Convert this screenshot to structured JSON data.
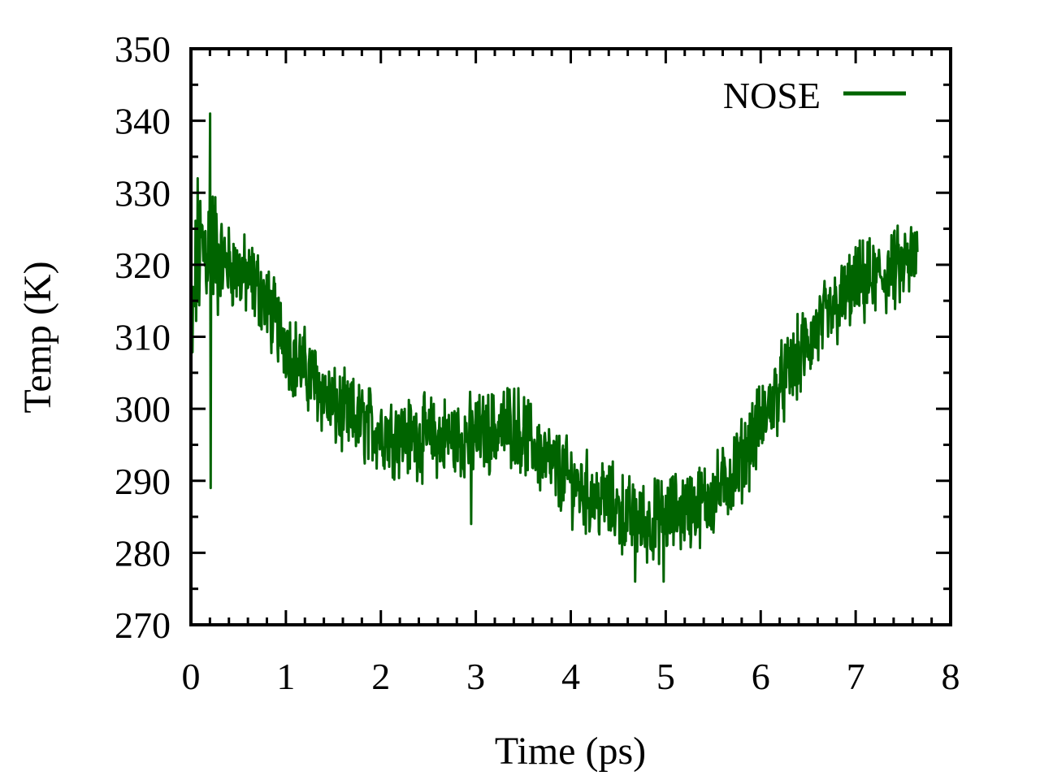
{
  "chart_data": {
    "type": "line",
    "xlabel": "Time (ps)",
    "ylabel": "Temp (K)",
    "xlim": [
      0,
      8
    ],
    "ylim": [
      270,
      350
    ],
    "xticks": [
      "0",
      "1",
      "2",
      "3",
      "4",
      "5",
      "6",
      "7",
      "8"
    ],
    "yticks": [
      "270",
      "280",
      "290",
      "300",
      "310",
      "320",
      "330",
      "340",
      "350"
    ],
    "minor_ticks": true,
    "grid": false,
    "legend_position": "top-right",
    "series": [
      {
        "name": "NOSE",
        "color": "#006400",
        "x_range": [
          0,
          7.65
        ],
        "noise_amplitude_K": 4.5,
        "trend_x": [
          0.0,
          0.05,
          0.1,
          0.2,
          0.3,
          0.5,
          0.7,
          0.9,
          1.1,
          1.3,
          1.5,
          1.8,
          2.0,
          2.3,
          2.6,
          2.9,
          3.2,
          3.4,
          3.6,
          3.8,
          4.0,
          4.2,
          4.4,
          4.6,
          4.8,
          5.0,
          5.2,
          5.4,
          5.6,
          5.8,
          6.0,
          6.2,
          6.4,
          6.6,
          6.8,
          7.0,
          7.2,
          7.4,
          7.65
        ],
        "trend_y": [
          306,
          318,
          322,
          323,
          321,
          319,
          317,
          312,
          307,
          304,
          300,
          298,
          297,
          296,
          296,
          296,
          297,
          298,
          295,
          292,
          290,
          288,
          287,
          285,
          284,
          285,
          286,
          287,
          289,
          293,
          298,
          303,
          307,
          311,
          314,
          317,
          318,
          319,
          321
        ],
        "spikes": [
          {
            "x": 0.2,
            "y": 341
          },
          {
            "x": 0.21,
            "y": 289
          },
          {
            "x": 0.07,
            "y": 332
          },
          {
            "x": 4.68,
            "y": 276
          },
          {
            "x": 4.98,
            "y": 276
          },
          {
            "x": 2.95,
            "y": 284
          }
        ]
      }
    ]
  }
}
